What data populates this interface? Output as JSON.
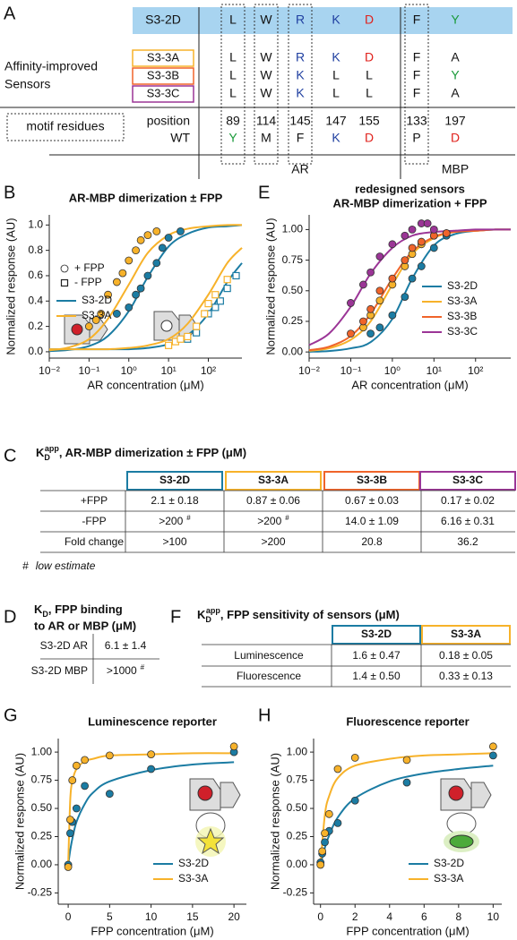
{
  "panels": [
    "A",
    "B",
    "C",
    "D",
    "E",
    "F",
    "G",
    "H"
  ],
  "panel_a": {
    "reference": {
      "name": "S3-2D",
      "residues": [
        "L",
        "W",
        "R",
        "K",
        "D",
        "F",
        "Y"
      ]
    },
    "sensors": [
      {
        "name": "S3-3A",
        "color": "#f7b22a",
        "residues": [
          "L",
          "W",
          "R",
          "K",
          "D",
          "F",
          "A"
        ]
      },
      {
        "name": "S3-3B",
        "color": "#f0642a",
        "residues": [
          "L",
          "W",
          "K",
          "L",
          "L",
          "F",
          "Y"
        ]
      },
      {
        "name": "S3-3C",
        "color": "#9b3596",
        "residues": [
          "L",
          "W",
          "K",
          "L",
          "L",
          "F",
          "A"
        ]
      }
    ],
    "group_label": [
      "Affinity-improved",
      "Sensors"
    ],
    "motif_label": "motif residues",
    "position_label": "position",
    "wt_label": "WT",
    "positions": [
      89,
      114,
      145,
      147,
      155,
      133,
      197
    ],
    "wt": [
      "Y",
      "M",
      "F",
      "K",
      "D",
      "P",
      "D"
    ],
    "motif_columns": [
      0,
      1,
      2,
      5
    ],
    "residue_colors": {
      "R": "#1f3fa0",
      "K": "#1f3fa0",
      "D": "#e0201b",
      "Y": "#1a9a3a"
    },
    "band_color": "#a8d4f0",
    "domains": [
      "AR",
      "MBP"
    ]
  },
  "chart_data": [
    {
      "type": "scatter",
      "title": "AR-MBP dimerization ± FPP",
      "xlabel": "AR concentration (μM)",
      "ylabel": "Normalized response (AU)",
      "xlog": true,
      "xlim": [
        0.01,
        700
      ],
      "ylim": [
        -0.05,
        1.08
      ],
      "xticks": [
        {
          "value": 0.01,
          "label": "10⁻²"
        },
        {
          "value": 0.1,
          "label": "10⁻¹"
        },
        {
          "value": 1,
          "label": "10⁰"
        },
        {
          "value": 10,
          "label": "10¹"
        },
        {
          "value": 100,
          "label": "10²"
        }
      ],
      "yticks": [
        {
          "value": 0,
          "label": "0.0"
        },
        0.2,
        0.4,
        0.6,
        0.8,
        {
          "value": 1,
          "label": "1.0"
        }
      ],
      "marker_legend": [
        "+ FPP",
        "- FPP"
      ],
      "markers": [
        "circle",
        "square"
      ],
      "legend": "upper left",
      "fit_x": [
        0.01,
        0.03,
        0.1,
        0.3,
        1,
        3,
        10,
        30,
        100,
        300,
        700
      ],
      "series": [
        {
          "name": "S3-2D",
          "color": "#1b7ca3",
          "groups": [
            {
              "x": [
                0.5,
                1,
                1.5,
                2,
                3,
                5,
                7,
                10,
                20
              ],
              "values": [
                0.3,
                0.35,
                0.45,
                0.5,
                0.6,
                0.7,
                0.82,
                0.9,
                0.95
              ],
              "fit_values": [
                0.005,
                0.014,
                0.045,
                0.125,
                0.32,
                0.59,
                0.83,
                0.93,
                0.98,
                0.99,
                1.0
              ]
            },
            {
              "x": [
                30,
                50,
                100,
                150,
                200,
                300,
                500
              ],
              "values": [
                0.1,
                0.15,
                0.3,
                0.35,
                0.4,
                0.5,
                0.6
              ],
              "fit_values": [
                0.02,
                0.02,
                0.02,
                0.02,
                0.02,
                0.03,
                0.06,
                0.13,
                0.3,
                0.55,
                0.7
              ]
            }
          ]
        },
        {
          "name": "S3-3A",
          "color": "#f7b22a",
          "groups": [
            {
              "x": [
                0.1,
                0.15,
                0.2,
                0.3,
                0.5,
                0.7,
                1,
                1.5,
                2,
                3,
                5
              ],
              "values": [
                0.2,
                0.25,
                0.3,
                0.45,
                0.55,
                0.62,
                0.72,
                0.8,
                0.88,
                0.92,
                0.95
              ],
              "fit_values": [
                0.011,
                0.033,
                0.1,
                0.26,
                0.53,
                0.78,
                0.92,
                0.97,
                0.99,
                1.0,
                1.0
              ]
            },
            {
              "x": [
                10,
                15,
                20,
                30,
                50,
                80,
                100,
                150,
                300
              ],
              "values": [
                0.05,
                0.08,
                0.1,
                0.12,
                0.2,
                0.3,
                0.38,
                0.45,
                0.57
              ],
              "fit_values": [
                0.02,
                0.02,
                0.02,
                0.02,
                0.03,
                0.05,
                0.1,
                0.22,
                0.45,
                0.7,
                0.82
              ]
            }
          ]
        }
      ]
    },
    {
      "type": "scatter",
      "title": [
        "redesigned sensors",
        "AR-MBP dimerization + FPP"
      ],
      "xlabel": "AR concentration (μM)",
      "ylabel": "Normalized response (AU)",
      "xlog": true,
      "xlim": [
        0.01,
        700
      ],
      "ylim": [
        -0.05,
        1.12
      ],
      "xticks": [
        {
          "value": 0.01,
          "label": "10⁻²"
        },
        {
          "value": 0.1,
          "label": "10⁻¹"
        },
        {
          "value": 1,
          "label": "10⁰"
        },
        {
          "value": 10,
          "label": "10¹"
        },
        {
          "value": 100,
          "label": "10²"
        }
      ],
      "yticks": [
        {
          "value": 0,
          "label": "0.00"
        },
        0.25,
        {
          "value": 0.5,
          "label": "0.50"
        },
        0.75,
        {
          "value": 1,
          "label": "1.00"
        }
      ],
      "legend": "center right",
      "fit_x": [
        0.01,
        0.03,
        0.1,
        0.3,
        1,
        3,
        10,
        30,
        100,
        300,
        700
      ],
      "series": [
        {
          "name": "S3-2D",
          "color": "#1b7ca3",
          "groups": [
            {
              "x": [
                0.3,
                0.5,
                1,
                2,
                3,
                5,
                10,
                20
              ],
              "values": [
                0.15,
                0.2,
                0.3,
                0.45,
                0.6,
                0.7,
                0.85,
                0.95
              ],
              "fit_values": [
                0.002,
                0.008,
                0.03,
                0.08,
                0.27,
                0.6,
                0.87,
                0.96,
                0.99,
                1.0,
                1.0
              ]
            }
          ]
        },
        {
          "name": "S3-3A",
          "color": "#f7b22a",
          "groups": [
            {
              "x": [
                0.2,
                0.3,
                0.5,
                1,
                2,
                3,
                5,
                10,
                20
              ],
              "values": [
                0.2,
                0.3,
                0.42,
                0.55,
                0.7,
                0.8,
                0.88,
                0.95,
                0.97
              ],
              "fit_values": [
                0.01,
                0.03,
                0.1,
                0.25,
                0.55,
                0.8,
                0.93,
                0.98,
                0.99,
                1.0,
                1.0
              ]
            }
          ]
        },
        {
          "name": "S3-3B",
          "color": "#f0642a",
          "groups": [
            {
              "x": [
                0.1,
                0.2,
                0.3,
                0.5,
                1,
                2,
                3,
                5,
                10,
                20
              ],
              "values": [
                0.15,
                0.25,
                0.35,
                0.5,
                0.6,
                0.75,
                0.85,
                0.9,
                0.95,
                0.97
              ],
              "fit_values": [
                0.015,
                0.043,
                0.13,
                0.31,
                0.6,
                0.82,
                0.94,
                0.98,
                0.99,
                1.0,
                1.0
              ]
            }
          ]
        },
        {
          "name": "S3-3C",
          "color": "#9b3596",
          "groups": [
            {
              "x": [
                0.1,
                0.2,
                0.3,
                0.5,
                1,
                2,
                3,
                5,
                7,
                10
              ],
              "values": [
                0.4,
                0.55,
                0.65,
                0.78,
                0.88,
                0.95,
                1.0,
                1.05,
                1.05,
                1.0
              ],
              "fit_values": [
                0.056,
                0.15,
                0.37,
                0.64,
                0.85,
                0.95,
                0.98,
                0.99,
                1.0,
                1.0,
                1.0
              ]
            }
          ]
        }
      ]
    },
    {
      "type": "scatter",
      "title": "Luminescence reporter",
      "xlabel": "FPP concentration (μM)",
      "ylabel": "Normalized response (AU)",
      "xlog": false,
      "xlim": [
        -1.2,
        21.5
      ],
      "ylim": [
        -0.35,
        1.12
      ],
      "xticks": [
        0,
        5,
        10,
        15,
        20
      ],
      "yticks": [
        -0.25,
        {
          "value": 0,
          "label": "0.00"
        },
        0.25,
        {
          "value": 0.5,
          "label": "0.50"
        },
        0.75,
        {
          "value": 1,
          "label": "1.00"
        }
      ],
      "legend": "lower right",
      "fit_x": [
        0,
        0.25,
        0.5,
        1,
        2,
        3,
        5,
        10,
        15,
        20
      ],
      "series": [
        {
          "name": "S3-2D",
          "color": "#1b7ca3",
          "groups": [
            {
              "x": [
                0,
                0.25,
                0.5,
                1,
                2,
                5,
                10,
                20
              ],
              "values": [
                0.0,
                0.28,
                0.38,
                0.5,
                0.7,
                0.63,
                0.85,
                1.0
              ],
              "fit_values": [
                0,
                0.13,
                0.23,
                0.38,
                0.54,
                0.64,
                0.74,
                0.84,
                0.89,
                0.91
              ]
            }
          ]
        },
        {
          "name": "S3-3A",
          "color": "#f7b22a",
          "groups": [
            {
              "x": [
                0,
                0.25,
                0.5,
                1,
                2,
                5,
                10,
                20
              ],
              "values": [
                -0.02,
                0.4,
                0.75,
                0.88,
                0.93,
                0.97,
                0.98,
                1.05
              ],
              "fit_values": [
                0,
                0.58,
                0.74,
                0.85,
                0.92,
                0.94,
                0.97,
                0.98,
                0.99,
                0.99
              ]
            }
          ]
        }
      ]
    },
    {
      "type": "scatter",
      "title": "Fluorescence reporter",
      "xlabel": "FPP concentration (μM)",
      "ylabel": "Normalized response (AU)",
      "xlog": false,
      "xlim": [
        -0.4,
        10.5
      ],
      "ylim": [
        -0.35,
        1.12
      ],
      "xticks": [
        0,
        2,
        4,
        6,
        8,
        10
      ],
      "yticks": [
        -0.25,
        {
          "value": 0,
          "label": "0.00"
        },
        0.25,
        {
          "value": 0.5,
          "label": "0.50"
        },
        0.75,
        {
          "value": 1,
          "label": "1.00"
        }
      ],
      "legend": "lower right",
      "fit_x": [
        0,
        0.25,
        0.5,
        1,
        2,
        4,
        6,
        8,
        10
      ],
      "series": [
        {
          "name": "S3-2D",
          "color": "#1b7ca3",
          "groups": [
            {
              "x": [
                0,
                0.1,
                0.25,
                0.5,
                1,
                2,
                5,
                10
              ],
              "values": [
                0.02,
                0.1,
                0.2,
                0.3,
                0.37,
                0.57,
                0.73,
                0.97
              ],
              "fit_values": [
                0,
                0.15,
                0.26,
                0.42,
                0.59,
                0.74,
                0.81,
                0.85,
                0.88
              ]
            }
          ]
        },
        {
          "name": "S3-3A",
          "color": "#f7b22a",
          "groups": [
            {
              "x": [
                0,
                0.1,
                0.25,
                0.5,
                1,
                2,
                5,
                10
              ],
              "values": [
                0.0,
                0.12,
                0.28,
                0.45,
                0.85,
                0.95,
                0.93,
                1.05
              ],
              "fit_values": [
                0,
                0.44,
                0.61,
                0.77,
                0.88,
                0.94,
                0.97,
                0.98,
                0.99
              ]
            }
          ]
        }
      ]
    }
  ],
  "table_c": {
    "title": {
      "symbol": "K",
      "sub": "D",
      "sup": "app",
      "text": ",  AR-MBP dimerization ± FPP  (μM)"
    },
    "columns": [
      "S3-2D",
      "S3-3A",
      "S3-3B",
      "S3-3C"
    ],
    "column_colors": [
      "#1b7ca3",
      "#f7b22a",
      "#f0642a",
      "#9b3596"
    ],
    "rows": [
      {
        "label": "+FPP",
        "cells": [
          {
            "text": "2.1 ± 0.18"
          },
          {
            "text": "0.87 ± 0.06"
          },
          {
            "text": "0.67 ± 0.03"
          },
          {
            "text": "0.17 ± 0.02"
          }
        ]
      },
      {
        "label": "-FPP",
        "cells": [
          {
            "text": ">200",
            "mark": "#"
          },
          {
            "text": ">200",
            "mark": "#"
          },
          {
            "text": "14.0 ± 1.09"
          },
          {
            "text": "6.16 ± 0.31"
          }
        ]
      },
      {
        "label": "Fold change",
        "cells": [
          {
            "text": ">100"
          },
          {
            "text": ">200"
          },
          {
            "text": "20.8"
          },
          {
            "text": "36.2"
          }
        ]
      }
    ],
    "footnote": {
      "mark": "#",
      "text": "low estimate"
    }
  },
  "table_d": {
    "title": {
      "symbol": "K",
      "sub": "D",
      "text": [
        ", FPP binding",
        "to AR or MBP (μM)"
      ]
    },
    "rows": [
      {
        "label": "S3-2D AR",
        "cell": {
          "text": "6.1 ± 1.4"
        }
      },
      {
        "label": "S3-2D MBP",
        "cell": {
          "text": ">1000",
          "mark": "#"
        }
      }
    ]
  },
  "table_f": {
    "title": {
      "symbol": "K",
      "sub": "D",
      "sup": "app",
      "text": ",  FPP sensitivity of sensors (μM)"
    },
    "columns": [
      "S3-2D",
      "S3-3A"
    ],
    "column_colors": [
      "#1b7ca3",
      "#f7b22a"
    ],
    "rows": [
      {
        "label": "Luminescence",
        "cells": [
          {
            "text": "1.6 ± 0.47"
          },
          {
            "text": "0.18 ± 0.05"
          }
        ]
      },
      {
        "label": "Fluorescence",
        "cells": [
          {
            "text": "1.4 ± 0.50"
          },
          {
            "text": "0.33 ± 0.13"
          }
        ]
      }
    ]
  }
}
